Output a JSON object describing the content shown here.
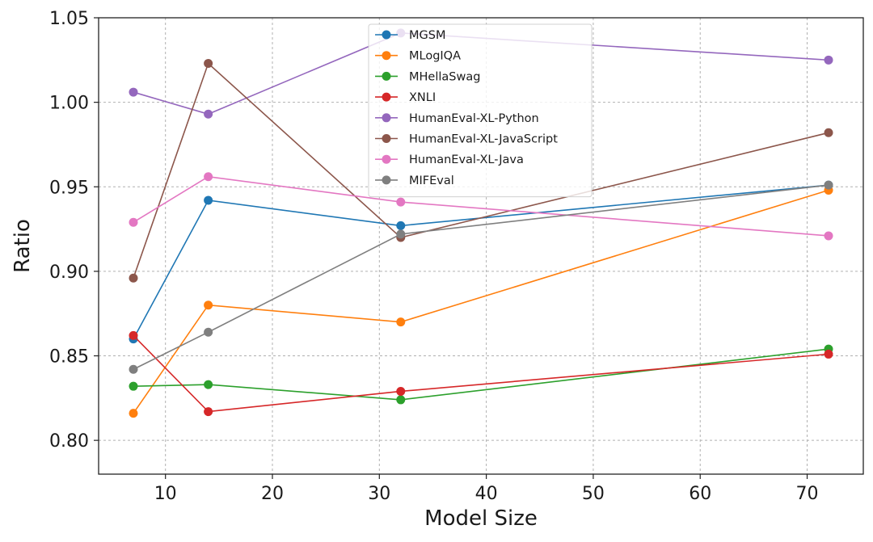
{
  "chart_data": {
    "type": "line",
    "title": "",
    "xlabel": "Model Size",
    "ylabel": "Ratio",
    "x": [
      7,
      14,
      32,
      72
    ],
    "xlim": [
      3.75,
      75.25
    ],
    "ylim": [
      0.78,
      1.05
    ],
    "xticks": [
      10,
      20,
      30,
      40,
      50,
      60,
      70
    ],
    "xtick_labels": [
      "10",
      "20",
      "30",
      "40",
      "50",
      "60",
      "70"
    ],
    "yticks": [
      0.8,
      0.85,
      0.9,
      0.95,
      1.0,
      1.05
    ],
    "ytick_labels": [
      "0.80",
      "0.85",
      "0.90",
      "0.95",
      "1.00",
      "1.05"
    ],
    "grid": true,
    "legend_position": "top-center",
    "series": [
      {
        "name": "MGSM",
        "color": "#1f77b4",
        "values": [
          0.86,
          0.942,
          0.927,
          0.951
        ]
      },
      {
        "name": "MLogIQA",
        "color": "#ff7f0e",
        "values": [
          0.816,
          0.88,
          0.87,
          0.948
        ]
      },
      {
        "name": "MHellaSwag",
        "color": "#2ca02c",
        "values": [
          0.832,
          0.833,
          0.824,
          0.854
        ]
      },
      {
        "name": "XNLI",
        "color": "#d62728",
        "values": [
          0.862,
          0.817,
          0.829,
          0.851
        ]
      },
      {
        "name": "HumanEval-XL-Python",
        "color": "#9467bd",
        "values": [
          1.006,
          0.993,
          1.041,
          1.025
        ]
      },
      {
        "name": "HumanEval-XL-JavaScript",
        "color": "#8c564b",
        "values": [
          0.896,
          1.023,
          0.92,
          0.982
        ]
      },
      {
        "name": "HumanEval-XL-Java",
        "color": "#e377c2",
        "values": [
          0.929,
          0.956,
          0.941,
          0.921
        ]
      },
      {
        "name": "MIFEval",
        "color": "#7f7f7f",
        "values": [
          0.842,
          0.864,
          0.922,
          0.951
        ]
      }
    ]
  }
}
